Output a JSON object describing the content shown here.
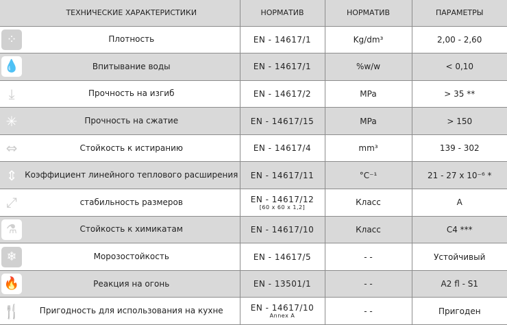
{
  "header": {
    "col_characteristic": "ТЕХНИЧЕСКИЕ ХАРАКТЕРИСТИКИ",
    "col_norm": "НОРМАТИВ",
    "col_norm2": "НОРМАТИВ",
    "col_params": "ПАРАМЕТРЫ"
  },
  "colors": {
    "row_alt": "#d9d9d9",
    "grid": "#8c8c8c",
    "icon": "#d0d0d0"
  },
  "rows": [
    {
      "icon": "density-icon",
      "glyph": "⁘",
      "name": "Плотность",
      "norm": "EN - 14617/1",
      "norm_sub": "",
      "unit": "Kg/dm³",
      "value": "2,00 - 2,60"
    },
    {
      "icon": "water-drop-icon",
      "glyph": "💧",
      "name": "Впитывание воды",
      "norm": "EN - 14617/1",
      "norm_sub": "",
      "unit": "%w/w",
      "value": "< 0,10"
    },
    {
      "icon": "bending-arrow-icon",
      "glyph": "⤓",
      "name": "Прочность на изгиб",
      "norm": "EN - 14617/2",
      "norm_sub": "",
      "unit": "MPa",
      "value": "> 35 **"
    },
    {
      "icon": "compression-icon",
      "glyph": "✳",
      "name": "Прочность на сжатие",
      "norm": "EN - 14617/15",
      "norm_sub": "",
      "unit": "MPa",
      "value": "> 150"
    },
    {
      "icon": "abrasion-icon",
      "glyph": "⇔",
      "name": "Стойкость к истиранию",
      "norm": "EN - 14617/4",
      "norm_sub": "",
      "unit": "mm³",
      "value": "139 - 302"
    },
    {
      "icon": "thermal-expansion-icon",
      "glyph": "⇕",
      "name": "Коэффициент линейного теплового расширения",
      "norm": "EN - 14617/11",
      "norm_sub": "",
      "unit": "°C⁻¹",
      "value": "21 - 27 x 10⁻⁶ *"
    },
    {
      "icon": "dimension-arrows-icon",
      "glyph": "⤢",
      "name": "стабильность размеров",
      "norm": "EN - 14617/12",
      "norm_sub": "[60 x 60 x 1,2]",
      "unit": "Класс",
      "value": "A"
    },
    {
      "icon": "chemical-icon",
      "glyph": "⚗",
      "name": "Стойкость к химикатам",
      "norm": "EN - 14617/10",
      "norm_sub": "",
      "unit": "Класс",
      "value": "C4 ***"
    },
    {
      "icon": "snowflake-icon",
      "glyph": "❄",
      "name": "Морозостойкость",
      "norm": "EN - 14617/5",
      "norm_sub": "",
      "unit": "- -",
      "value": "Устойчивый"
    },
    {
      "icon": "fire-icon",
      "glyph": "🔥",
      "name": "Реакция на огонь",
      "norm": "EN - 13501/1",
      "norm_sub": "",
      "unit": "- -",
      "value": "A2 fl - S1"
    },
    {
      "icon": "cutlery-icon",
      "glyph": "🍴",
      "name": "Пригодность для использования на кухне",
      "norm": "EN - 14617/10",
      "norm_sub": "Annex A",
      "unit": "- -",
      "value": "Пригоден"
    }
  ]
}
